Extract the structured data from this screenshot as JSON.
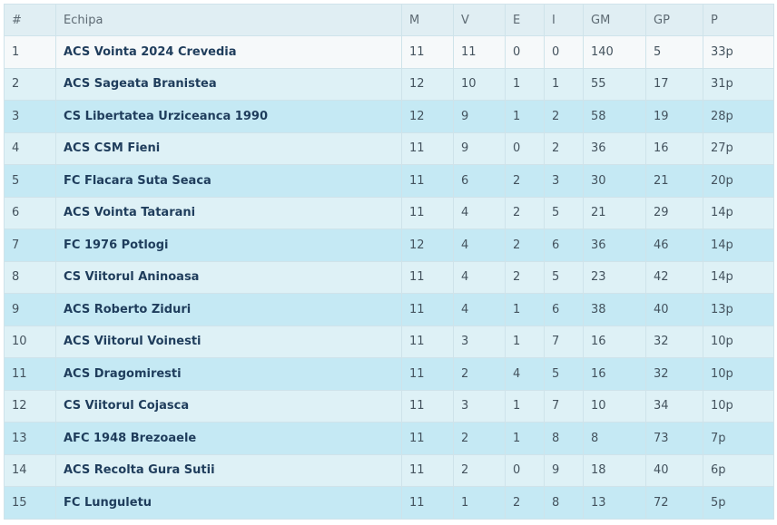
{
  "columns": [
    "#",
    "Echipa",
    "M",
    "V",
    "E",
    "I",
    "GM",
    "GP",
    "P"
  ],
  "rows": [
    {
      "rank": "1",
      "team": "ACS Vointa 2024 Crevedia",
      "m": "11",
      "v": "11",
      "e": "0",
      "i": "0",
      "gm": "140",
      "gp": "5",
      "p": "33p"
    },
    {
      "rank": "2",
      "team": "ACS Sageata Branistea",
      "m": "12",
      "v": "10",
      "e": "1",
      "i": "1",
      "gm": "55",
      "gp": "17",
      "p": "31p"
    },
    {
      "rank": "3",
      "team": "CS Libertatea Urziceanca 1990",
      "m": "12",
      "v": "9",
      "e": "1",
      "i": "2",
      "gm": "58",
      "gp": "19",
      "p": "28p"
    },
    {
      "rank": "4",
      "team": "ACS CSM Fieni",
      "m": "11",
      "v": "9",
      "e": "0",
      "i": "2",
      "gm": "36",
      "gp": "16",
      "p": "27p"
    },
    {
      "rank": "5",
      "team": "FC Flacara Suta Seaca",
      "m": "11",
      "v": "6",
      "e": "2",
      "i": "3",
      "gm": "30",
      "gp": "21",
      "p": "20p"
    },
    {
      "rank": "6",
      "team": "ACS Vointa Tatarani",
      "m": "11",
      "v": "4",
      "e": "2",
      "i": "5",
      "gm": "21",
      "gp": "29",
      "p": "14p"
    },
    {
      "rank": "7",
      "team": "FC 1976 Potlogi",
      "m": "12",
      "v": "4",
      "e": "2",
      "i": "6",
      "gm": "36",
      "gp": "46",
      "p": "14p"
    },
    {
      "rank": "8",
      "team": "CS Viitorul Aninoasa",
      "m": "11",
      "v": "4",
      "e": "2",
      "i": "5",
      "gm": "23",
      "gp": "42",
      "p": "14p"
    },
    {
      "rank": "9",
      "team": "ACS Roberto Ziduri",
      "m": "11",
      "v": "4",
      "e": "1",
      "i": "6",
      "gm": "38",
      "gp": "40",
      "p": "13p"
    },
    {
      "rank": "10",
      "team": "ACS Viitorul Voinesti",
      "m": "11",
      "v": "3",
      "e": "1",
      "i": "7",
      "gm": "16",
      "gp": "32",
      "p": "10p"
    },
    {
      "rank": "11",
      "team": "ACS Dragomiresti",
      "m": "11",
      "v": "2",
      "e": "4",
      "i": "5",
      "gm": "16",
      "gp": "32",
      "p": "10p"
    },
    {
      "rank": "12",
      "team": "CS Viitorul Cojasca",
      "m": "11",
      "v": "3",
      "e": "1",
      "i": "7",
      "gm": "10",
      "gp": "34",
      "p": "10p"
    },
    {
      "rank": "13",
      "team": "AFC 1948 Brezoaele",
      "m": "11",
      "v": "2",
      "e": "1",
      "i": "8",
      "gm": "8",
      "gp": "73",
      "p": "7p"
    },
    {
      "rank": "14",
      "team": "ACS Recolta Gura Sutii",
      "m": "11",
      "v": "2",
      "e": "0",
      "i": "9",
      "gm": "18",
      "gp": "40",
      "p": "6p"
    },
    {
      "rank": "15",
      "team": "FC Lunguletu",
      "m": "11",
      "v": "1",
      "e": "2",
      "i": "8",
      "gm": "13",
      "gp": "72",
      "p": "5p"
    }
  ],
  "colors": {
    "header_bg": "#e0eef3",
    "row_first_bg": "#f6f9fa",
    "row_light_bg": "#def1f6",
    "row_dark_bg": "#c5e9f4",
    "team_text": "#1f3d5c",
    "border": "#cfe3ea"
  }
}
